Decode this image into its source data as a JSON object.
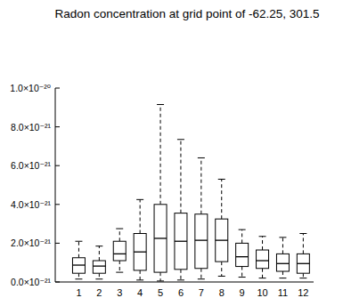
{
  "chart_data": {
    "type": "box",
    "title": "Radon concentration at grid point of -62.25, 301.5",
    "categories": [
      "1",
      "2",
      "3",
      "4",
      "5",
      "6",
      "7",
      "8",
      "9",
      "10",
      "11",
      "12"
    ],
    "min": [
      1.5e-22,
      1.5e-22,
      5e-22,
      1e-22,
      5e-23,
      1e-22,
      1.5e-22,
      3e-22,
      2.5e-22,
      2e-22,
      2e-22,
      2e-22
    ],
    "q1": [
      4.5e-22,
      4.5e-22,
      1.1e-21,
      6e-22,
      5e-22,
      6.5e-22,
      7e-22,
      1.05e-21,
      8e-22,
      7e-22,
      5.5e-22,
      4.5e-22
    ],
    "median": [
      8.7e-22,
      8.2e-22,
      1.45e-21,
      1.55e-21,
      2.25e-21,
      2.1e-21,
      2.15e-21,
      2.15e-21,
      1.3e-21,
      1.1e-21,
      9.5e-22,
      9.5e-22
    ],
    "q3": [
      1.25e-21,
      1.1e-21,
      2.1e-21,
      2.5e-21,
      4e-21,
      3.55e-21,
      3.5e-21,
      3.25e-21,
      2e-21,
      1.65e-21,
      1.45e-21,
      1.45e-21
    ],
    "max": [
      2.1e-21,
      1.85e-21,
      2.75e-21,
      4.25e-21,
      9.15e-21,
      7.35e-21,
      6.4e-21,
      5.3e-21,
      2.7e-21,
      2.35e-21,
      2.3e-21,
      2.5e-21
    ],
    "color": "#000000",
    "ylim": [
      0,
      1e-20
    ],
    "yticks": [
      {
        "value": 0,
        "label": "0.0×10⁻²¹"
      },
      {
        "value": 2e-21,
        "label": "2.0×10⁻²¹"
      },
      {
        "value": 4e-21,
        "label": "4.0×10⁻²¹"
      },
      {
        "value": 6e-21,
        "label": "6.0×10⁻²¹"
      },
      {
        "value": 8e-21,
        "label": "8.0×10⁻²¹"
      },
      {
        "value": 1e-20,
        "label": "1.0×10⁻²⁰"
      }
    ],
    "grid": false
  }
}
